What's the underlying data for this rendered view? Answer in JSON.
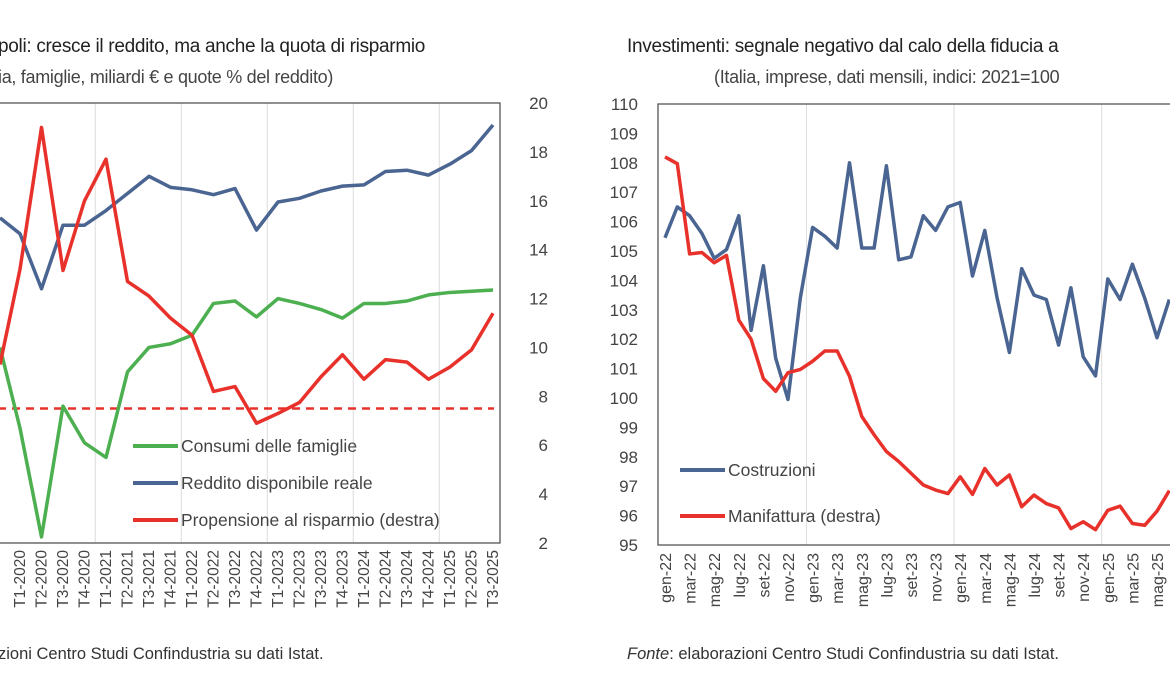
{
  "chart_data": [
    {
      "type": "line",
      "title": "poli: cresce il reddito, ma anche la quota di risparmio",
      "subtitle": "ia, famiglie, miliardi € e quote % del reddito)",
      "source": "zioni Centro Studi Confindustria su dati Istat.",
      "categories": [
        "T1-2020",
        "T2-2020",
        "T3-2020",
        "T4-2020",
        "T1-2021",
        "T2-2021",
        "T3-2021",
        "T4-2021",
        "T1-2022",
        "T2-2022",
        "T3-2022",
        "T4-2022",
        "T1-2023",
        "T2-2023",
        "T3-2023",
        "T4-2023",
        "T1-2024",
        "T2-2024",
        "T3-2024",
        "T4-2024",
        "T1-2025",
        "T2-2025",
        "T3-2025"
      ],
      "y2_ticks": [
        2,
        4,
        6,
        8,
        10,
        12,
        14,
        16,
        18,
        20
      ],
      "y2lim": [
        2,
        20
      ],
      "grid": "vertical, between years",
      "legend_placement": "bottom-center",
      "series": [
        {
          "name": "Consumi delle famiglie",
          "color": "#4caf50",
          "axis": "left (not visible; plotted against right scale)",
          "values": [
            6.7,
            2.25,
            7.6,
            6.1,
            5.5,
            9.0,
            10.0,
            10.15,
            10.5,
            11.8,
            11.9,
            11.25,
            12.0,
            11.8,
            11.55,
            11.2,
            11.8,
            11.8,
            11.9,
            12.15,
            12.25,
            12.3,
            12.35
          ]
        },
        {
          "name": "Reddito disponibile reale",
          "color": "#4a6591",
          "axis": "left (not visible; plotted against right scale)",
          "values": [
            14.65,
            12.4,
            15.0,
            15.0,
            15.6,
            16.3,
            17.0,
            16.55,
            16.45,
            16.25,
            16.5,
            14.8,
            15.95,
            16.1,
            16.4,
            16.6,
            16.65,
            17.2,
            17.25,
            17.05,
            17.5,
            18.05,
            19.1
          ]
        },
        {
          "name": "Propensione al risparmio (destra)",
          "color": "#e8312a",
          "axis": "right",
          "values": [
            13.2,
            19.0,
            13.15,
            16.0,
            17.7,
            12.7,
            12.1,
            11.2,
            10.5,
            8.2,
            8.4,
            6.9,
            7.3,
            7.75,
            8.8,
            9.7,
            8.7,
            9.5,
            9.4,
            8.7,
            9.2,
            9.9,
            11.4
          ]
        }
      ],
      "reference_line": {
        "value": 7.5,
        "color": "#e8312a",
        "style": "dashed"
      }
    },
    {
      "type": "line",
      "title": "Investimenti: segnale negativo dal calo della fiducia a",
      "subtitle": "(Italia, imprese, dati mensili, indici: 2021=100",
      "source_label": "Fonte",
      "source": ": elaborazioni Centro Studi Confindustria su dati Istat.",
      "categories": [
        "gen-22",
        "feb-22",
        "mar-22",
        "apr-22",
        "mag-22",
        "giu-22",
        "lug-22",
        "ago-22",
        "set-22",
        "ott-22",
        "nov-22",
        "dic-22",
        "gen-23",
        "feb-23",
        "mar-23",
        "apr-23",
        "mag-23",
        "giu-23",
        "lug-23",
        "ago-23",
        "set-23",
        "ott-23",
        "nov-23",
        "dic-23",
        "gen-24",
        "feb-24",
        "mar-24",
        "apr-24",
        "mag-24",
        "giu-24",
        "lug-24",
        "ago-24",
        "set-24",
        "ott-24",
        "nov-24",
        "dic-24",
        "gen-25",
        "feb-25",
        "mar-25",
        "apr-25",
        "mag-25",
        "giu-25"
      ],
      "x_tick_labels": [
        "gen-22",
        "mar-22",
        "mag-22",
        "lug-22",
        "set-22",
        "nov-22",
        "gen-23",
        "mar-23",
        "mag-23",
        "lug-23",
        "set-23",
        "nov-23",
        "gen-24",
        "mar-24",
        "mag-24",
        "lug-24",
        "set-24",
        "nov-24",
        "gen-25",
        "mar-25",
        "mag-25"
      ],
      "y_ticks": [
        95,
        96,
        97,
        98,
        99,
        100,
        101,
        102,
        103,
        104,
        105,
        106,
        107,
        108,
        109,
        110
      ],
      "ylim": [
        95,
        110
      ],
      "grid": "vertical, between years",
      "legend_placement": "bottom-left",
      "series": [
        {
          "name": "Costruzioni",
          "color": "#4a6591",
          "values": [
            105.45,
            106.5,
            106.2,
            105.6,
            104.75,
            105.05,
            106.2,
            102.3,
            104.5,
            101.35,
            99.95,
            103.4,
            105.8,
            105.5,
            105.1,
            108.0,
            105.1,
            105.1,
            107.9,
            104.7,
            104.8,
            106.2,
            105.7,
            106.5,
            106.65,
            104.15,
            105.7,
            103.4,
            101.55,
            104.4,
            103.5,
            103.35,
            101.8,
            103.75,
            101.4,
            100.75,
            104.05,
            103.35,
            104.55,
            103.4,
            102.05,
            103.35
          ]
        },
        {
          "name": "Manifattura (destra)",
          "color": "#e8312a",
          "axis": "right (not visible; plotted against left scale)",
          "values": [
            108.2,
            107.97,
            104.9,
            104.95,
            104.6,
            104.85,
            102.65,
            102.0,
            100.66,
            100.23,
            100.86,
            100.97,
            101.25,
            101.6,
            101.6,
            100.74,
            99.37,
            98.75,
            98.18,
            97.84,
            97.44,
            97.04,
            96.87,
            96.75,
            97.32,
            96.72,
            97.6,
            97.04,
            97.38,
            96.3,
            96.7,
            96.41,
            96.26,
            95.56,
            95.79,
            95.52,
            96.18,
            96.32,
            95.73,
            95.67,
            96.15,
            96.85
          ]
        }
      ]
    }
  ]
}
